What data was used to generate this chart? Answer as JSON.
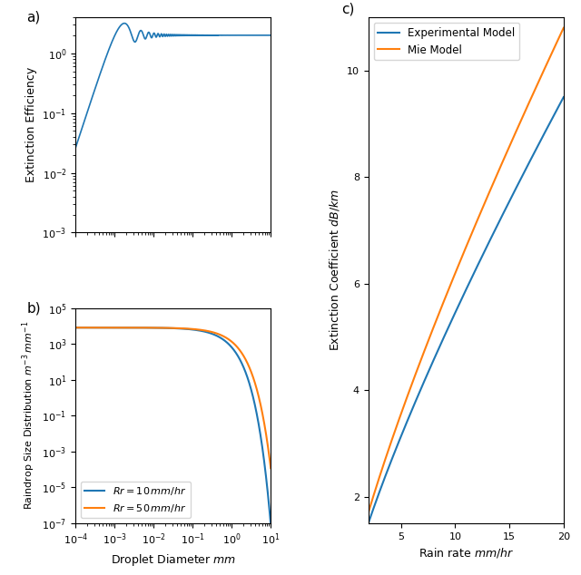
{
  "blue_color": "#1f77b4",
  "orange_color": "#ff7f0e",
  "panel_a_label": "a)",
  "panel_b_label": "b)",
  "panel_c_label": "c)",
  "panel_a_ylabel": "Extinction Efficiency",
  "panel_b_ylabel": "Raindrop Size Distribution $m^{-3}\\,mm^{-1}$",
  "panel_b_xlabel": "Droplet Diameter $mm$",
  "panel_c_ylabel": "Extinction Coefficient $dB/km$",
  "panel_c_xlabel": "Rain rate $mm/hr$",
  "legend_b_labels": [
    "$Rr = 10\\,mm/hr$",
    "$Rr = 50\\,mm/hr$"
  ],
  "legend_c_labels": [
    "Experimental Model",
    "Mie Model"
  ],
  "panel_a_xlim": [
    0.0001,
    10
  ],
  "panel_a_ylim": [
    0.001,
    4.0
  ],
  "panel_b_xlim": [
    0.0001,
    10
  ],
  "panel_b_ylim": [
    1e-07,
    100000.0
  ],
  "panel_c_xlim": [
    2,
    20
  ],
  "panel_c_ylim": [
    1.5,
    11.0
  ],
  "panel_c_yticks": [
    2,
    4,
    6,
    8,
    10
  ]
}
